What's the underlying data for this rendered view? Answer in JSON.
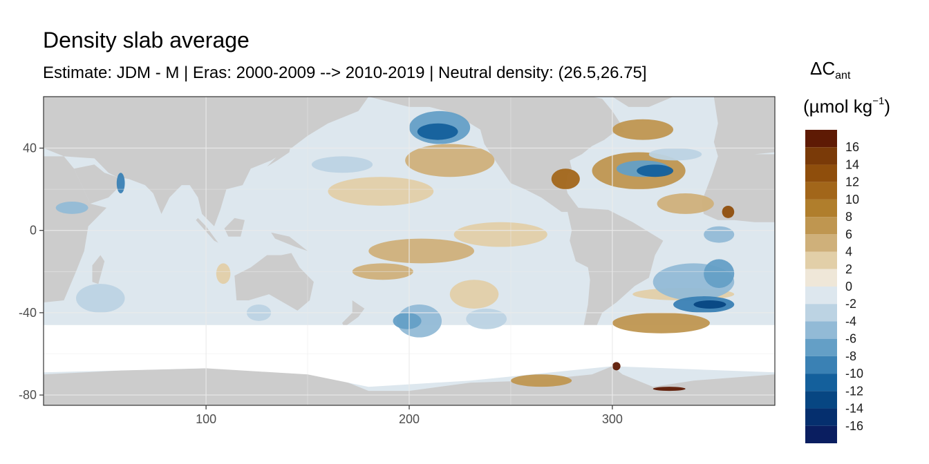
{
  "chart_data": {
    "type": "heatmap",
    "title": "Density slab average",
    "subtitle": "Estimate: JDM - M | Eras: 2000-2009 --> 2010-2019 | Neutral density: (26.5,26.75]",
    "xlabel": "",
    "ylabel": "",
    "xlim": [
      20,
      380
    ],
    "ylim": [
      -85,
      65
    ],
    "x_ticks": [
      100,
      200,
      300
    ],
    "y_ticks": [
      40,
      0,
      -40,
      -80
    ],
    "x_tick_labels": [
      "100",
      "200",
      "300"
    ],
    "y_tick_labels": [
      "40",
      "0",
      "-40",
      "-80"
    ],
    "grid": true,
    "legend": {
      "position": "right",
      "title_main": "ΔC",
      "title_sub": "ant",
      "units_main": "(µmol kg",
      "units_sup": "−1",
      "units_close": ")",
      "labels": [
        "16",
        "14",
        "12",
        "10",
        "8",
        "6",
        "4",
        "2",
        "0",
        "-2",
        "-4",
        "-6",
        "-8",
        "-10",
        "-12",
        "-14",
        "-16"
      ],
      "bins": [
        {
          "range": [
            16,
            18
          ],
          "color": "#5e1a04"
        },
        {
          "range": [
            14,
            16
          ],
          "color": "#7a3a08"
        },
        {
          "range": [
            12,
            14
          ],
          "color": "#8f4e0c"
        },
        {
          "range": [
            10,
            12
          ],
          "color": "#a2661a"
        },
        {
          "range": [
            8,
            10
          ],
          "color": "#b07e2c"
        },
        {
          "range": [
            6,
            8
          ],
          "color": "#bf9650"
        },
        {
          "range": [
            4,
            6
          ],
          "color": "#cfb07a"
        },
        {
          "range": [
            2,
            4
          ],
          "color": "#e2cfa8"
        },
        {
          "range": [
            0,
            2
          ],
          "color": "#efe7d8"
        },
        {
          "range": [
            -2,
            0
          ],
          "color": "#dde7ee"
        },
        {
          "range": [
            -4,
            -2
          ],
          "color": "#bcd3e3"
        },
        {
          "range": [
            -6,
            -4
          ],
          "color": "#92bad6"
        },
        {
          "range": [
            -8,
            -6
          ],
          "color": "#649fc6"
        },
        {
          "range": [
            -10,
            -8
          ],
          "color": "#3a81b4"
        },
        {
          "range": [
            -12,
            -10
          ],
          "color": "#14609c"
        },
        {
          "range": [
            -14,
            -12
          ],
          "color": "#074682"
        },
        {
          "range": [
            -16,
            -14
          ],
          "color": "#052f6e"
        },
        {
          "range": [
            -18,
            -16
          ],
          "color": "#0a1e60"
        }
      ]
    },
    "land_color": "#cccccc",
    "nodata_color": "#ffffff",
    "anomaly_patches": [
      {
        "lon": [
          198,
          242
        ],
        "lat": [
          26,
          42
        ],
        "value": 4
      },
      {
        "lon": [
          160,
          212
        ],
        "lat": [
          12,
          26
        ],
        "value": 3
      },
      {
        "lon": [
          180,
          232
        ],
        "lat": [
          -16,
          -4
        ],
        "value": 5
      },
      {
        "lon": [
          222,
          268
        ],
        "lat": [
          -8,
          4
        ],
        "value": 2
      },
      {
        "lon": [
          172,
          202
        ],
        "lat": [
          -24,
          -16
        ],
        "value": 4
      },
      {
        "lon": [
          220,
          244
        ],
        "lat": [
          -38,
          -24
        ],
        "value": 3
      },
      {
        "lon": [
          105,
          112
        ],
        "lat": [
          -26,
          -16
        ],
        "value": 2
      },
      {
        "lon": [
          270,
          284
        ],
        "lat": [
          20,
          30
        ],
        "value": 10
      },
      {
        "lon": [
          290,
          336
        ],
        "lat": [
          20,
          38
        ],
        "value": 6
      },
      {
        "lon": [
          300,
          330
        ],
        "lat": [
          44,
          54
        ],
        "value": 6
      },
      {
        "lon": [
          322,
          350
        ],
        "lat": [
          8,
          18
        ],
        "value": 4
      },
      {
        "lon": [
          354,
          360
        ],
        "lat": [
          6,
          12
        ],
        "value": 13
      },
      {
        "lon": [
          300,
          348
        ],
        "lat": [
          -50,
          -40
        ],
        "value": 7
      },
      {
        "lon": [
          310,
          360
        ],
        "lat": [
          -34,
          -28
        ],
        "value": 3
      },
      {
        "lon": [
          250,
          280
        ],
        "lat": [
          -76,
          -70
        ],
        "value": 6
      },
      {
        "lon": [
          300,
          304
        ],
        "lat": [
          -68,
          -64
        ],
        "value": 17
      },
      {
        "lon": [
          320,
          336
        ],
        "lat": [
          -78,
          -76
        ],
        "value": 17
      },
      {
        "lon": [
          200,
          230
        ],
        "lat": [
          42,
          58
        ],
        "value": -7
      },
      {
        "lon": [
          204,
          224
        ],
        "lat": [
          44,
          52
        ],
        "value": -11
      },
      {
        "lon": [
          152,
          182
        ],
        "lat": [
          28,
          36
        ],
        "value": -4
      },
      {
        "lon": [
          194,
          216
        ],
        "lat": [
          -52,
          -36
        ],
        "value": -5
      },
      {
        "lon": [
          192,
          206
        ],
        "lat": [
          -48,
          -40
        ],
        "value": -8
      },
      {
        "lon": [
          228,
          248
        ],
        "lat": [
          -48,
          -38
        ],
        "value": -4
      },
      {
        "lon": [
          120,
          132
        ],
        "lat": [
          -44,
          -36
        ],
        "value": -4
      },
      {
        "lon": [
          36,
          60
        ],
        "lat": [
          -40,
          -26
        ],
        "value": -4
      },
      {
        "lon": [
          26,
          42
        ],
        "lat": [
          8,
          14
        ],
        "value": -5
      },
      {
        "lon": [
          56,
          60
        ],
        "lat": [
          18,
          28
        ],
        "value": -9
      },
      {
        "lon": [
          302,
          328
        ],
        "lat": [
          26,
          34
        ],
        "value": -8
      },
      {
        "lon": [
          312,
          330
        ],
        "lat": [
          26,
          32
        ],
        "value": -11
      },
      {
        "lon": [
          318,
          344
        ],
        "lat": [
          34,
          40
        ],
        "value": -4
      },
      {
        "lon": [
          320,
          360
        ],
        "lat": [
          -34,
          -16
        ],
        "value": -5
      },
      {
        "lon": [
          330,
          360
        ],
        "lat": [
          -40,
          -32
        ],
        "value": -9
      },
      {
        "lon": [
          340,
          356
        ],
        "lat": [
          -38,
          -34
        ],
        "value": -14
      },
      {
        "lon": [
          345,
          360
        ],
        "lat": [
          -28,
          -14
        ],
        "value": -8
      },
      {
        "lon": [
          345,
          360
        ],
        "lat": [
          -6,
          2
        ],
        "value": -5
      }
    ]
  }
}
